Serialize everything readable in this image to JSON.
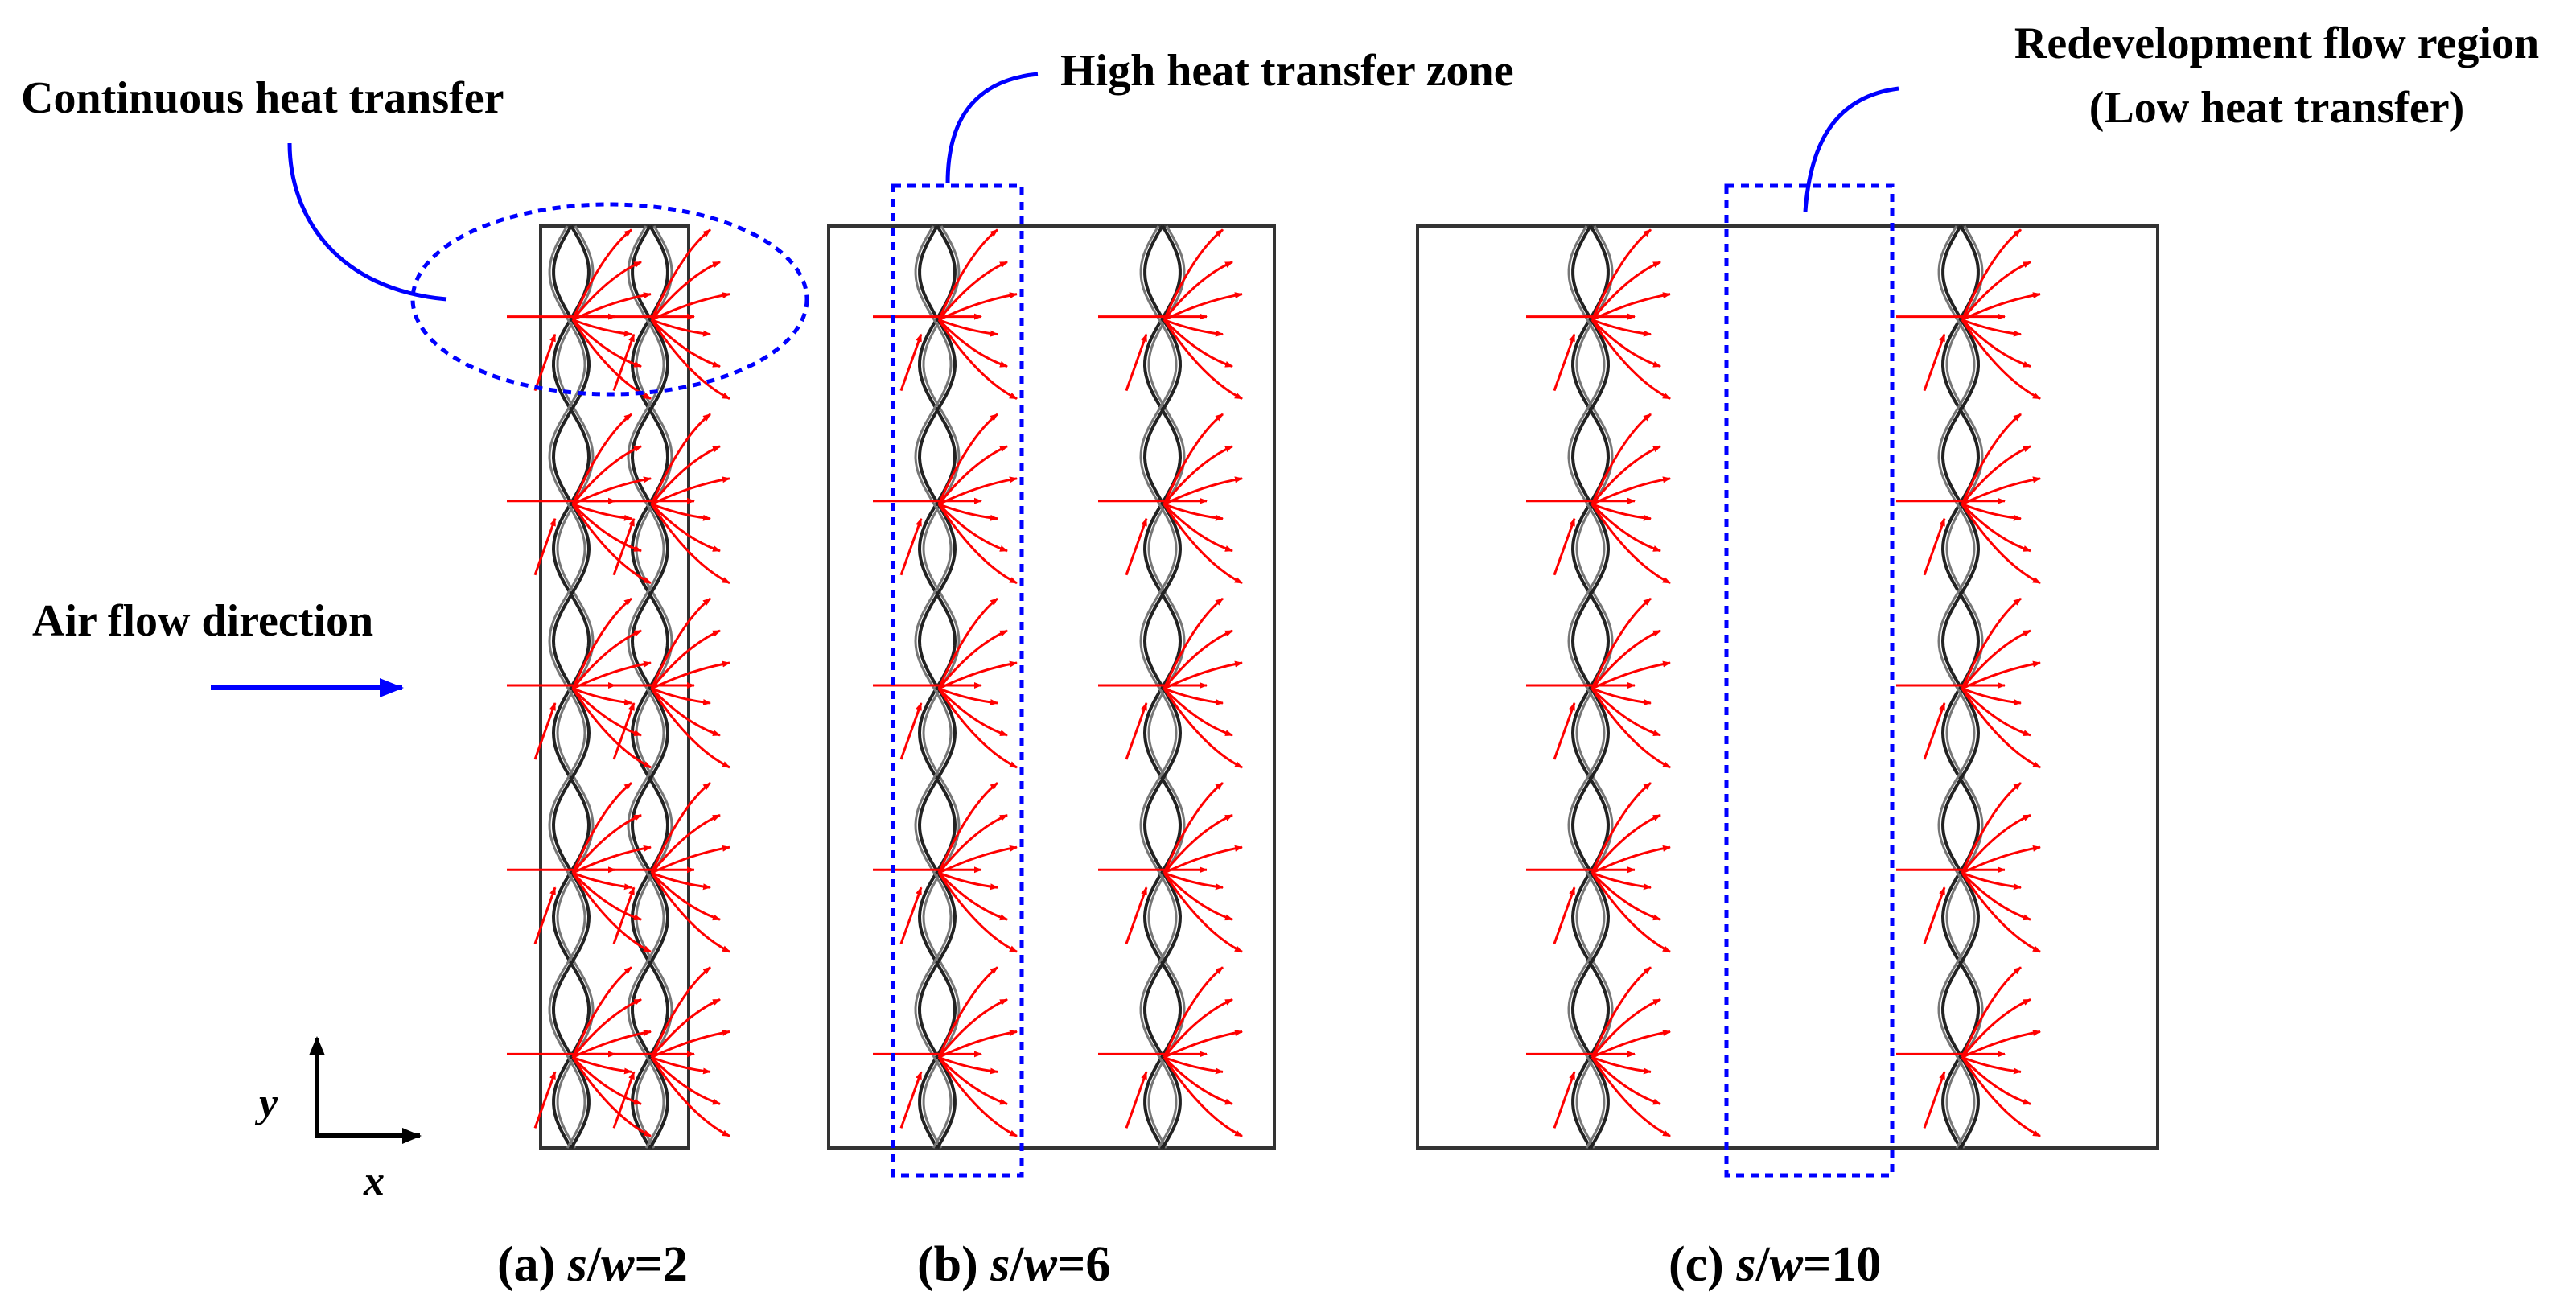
{
  "annotations": {
    "continuous": "Continuous heat transfer",
    "high_zone": "High heat transfer zone",
    "redevelopment_line1": "Redevelopment flow region",
    "redevelopment_line2": "(Low heat transfer)",
    "air_flow": "Air flow direction"
  },
  "axes": {
    "x": "x",
    "y": "y"
  },
  "panels": [
    {
      "id": "a",
      "prefix": "(a) ",
      "s": "s",
      "slash": "/",
      "w": "w",
      "eq": "=",
      "value": "2"
    },
    {
      "id": "b",
      "prefix": "(b) ",
      "s": "s",
      "slash": "/",
      "w": "w",
      "eq": "=",
      "value": "6"
    },
    {
      "id": "c",
      "prefix": "(c) ",
      "s": "s",
      "slash": "/",
      "w": "w",
      "eq": "=",
      "value": "10"
    }
  ],
  "colors": {
    "arrow": "#ff0000",
    "annotation": "#0000ff",
    "fin": "#222222",
    "frame": "#333333"
  }
}
